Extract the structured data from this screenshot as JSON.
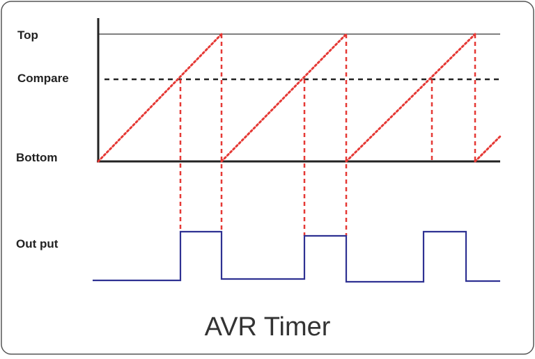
{
  "title": "AVR Timer",
  "labels": {
    "top": "Top",
    "compare": "Compare",
    "bottom": "Bottom",
    "output": "Out put"
  },
  "colors": {
    "frame": "#555555",
    "axis": "#222222",
    "counter": "#e53935",
    "compare_line": "#222222",
    "output": "#2e3192"
  }
}
